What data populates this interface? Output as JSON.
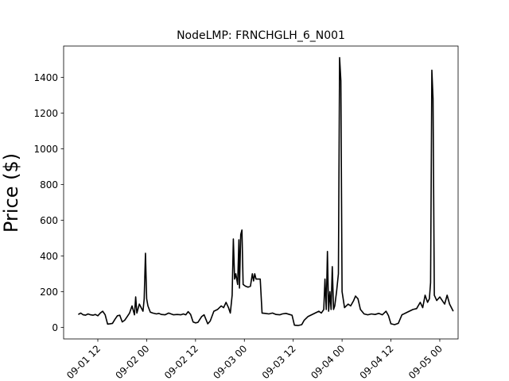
{
  "chart_data": {
    "type": "line",
    "title": "NodeLMP: FRNCHGLH_6_N001",
    "ylabel": "Price ($)",
    "xlabel": "",
    "grid": false,
    "legend": "none",
    "xlim": [
      -14.8,
      17.5
    ],
    "ylim": [
      -65,
      1575
    ],
    "y_ticks": [
      0,
      200,
      400,
      600,
      800,
      1000,
      1200,
      1400
    ],
    "x_ticks": [
      {
        "h": -12,
        "label": "09-01 12"
      },
      {
        "h": -8,
        "label": "09-02 00"
      },
      {
        "h": -4,
        "label": "09-02 12"
      },
      {
        "h": 0,
        "label": "09-03 00"
      },
      {
        "h": 4,
        "label": "09-03 12"
      },
      {
        "h": 8,
        "label": "09-04 00"
      },
      {
        "h": 12,
        "label": "09-04 12"
      },
      {
        "h": 16,
        "label": "09-05 00"
      }
    ],
    "series": [
      {
        "color": "#000000",
        "points": [
          [
            -13.6,
            72
          ],
          [
            -13.4,
            80
          ],
          [
            -13.2,
            70
          ],
          [
            -13.0,
            68
          ],
          [
            -12.8,
            75
          ],
          [
            -12.6,
            70
          ],
          [
            -12.4,
            68
          ],
          [
            -12.2,
            72
          ],
          [
            -12.0,
            65
          ],
          [
            -11.8,
            80
          ],
          [
            -11.6,
            90
          ],
          [
            -11.4,
            70
          ],
          [
            -11.2,
            18
          ],
          [
            -11.0,
            20
          ],
          [
            -10.8,
            22
          ],
          [
            -10.6,
            45
          ],
          [
            -10.4,
            65
          ],
          [
            -10.2,
            68
          ],
          [
            -10.0,
            30
          ],
          [
            -9.8,
            40
          ],
          [
            -9.6,
            60
          ],
          [
            -9.4,
            80
          ],
          [
            -9.2,
            120
          ],
          [
            -9.0,
            70
          ],
          [
            -8.9,
            170
          ],
          [
            -8.8,
            80
          ],
          [
            -8.6,
            130
          ],
          [
            -8.45,
            110
          ],
          [
            -8.3,
            90
          ],
          [
            -8.2,
            160
          ],
          [
            -8.1,
            415
          ],
          [
            -8.0,
            160
          ],
          [
            -7.9,
            120
          ],
          [
            -7.7,
            85
          ],
          [
            -7.5,
            80
          ],
          [
            -7.2,
            75
          ],
          [
            -7.0,
            78
          ],
          [
            -6.8,
            72
          ],
          [
            -6.5,
            70
          ],
          [
            -6.2,
            80
          ],
          [
            -6.0,
            75
          ],
          [
            -5.8,
            70
          ],
          [
            -5.5,
            72
          ],
          [
            -5.2,
            70
          ],
          [
            -5.0,
            75
          ],
          [
            -4.8,
            70
          ],
          [
            -4.6,
            88
          ],
          [
            -4.4,
            72
          ],
          [
            -4.2,
            30
          ],
          [
            -4.0,
            25
          ],
          [
            -3.8,
            28
          ],
          [
            -3.5,
            60
          ],
          [
            -3.3,
            70
          ],
          [
            -3.0,
            20
          ],
          [
            -2.8,
            35
          ],
          [
            -2.5,
            90
          ],
          [
            -2.2,
            100
          ],
          [
            -1.9,
            120
          ],
          [
            -1.7,
            110
          ],
          [
            -1.5,
            140
          ],
          [
            -1.3,
            110
          ],
          [
            -1.15,
            80
          ],
          [
            -1.0,
            180
          ],
          [
            -0.9,
            495
          ],
          [
            -0.8,
            270
          ],
          [
            -0.7,
            300
          ],
          [
            -0.55,
            240
          ],
          [
            -0.45,
            490
          ],
          [
            -0.4,
            220
          ],
          [
            -0.3,
            520
          ],
          [
            -0.2,
            545
          ],
          [
            -0.1,
            240
          ],
          [
            0.1,
            230
          ],
          [
            0.3,
            225
          ],
          [
            0.5,
            230
          ],
          [
            0.65,
            300
          ],
          [
            0.75,
            260
          ],
          [
            0.85,
            300
          ],
          [
            0.95,
            270
          ],
          [
            1.1,
            270
          ],
          [
            1.3,
            270
          ],
          [
            1.45,
            80
          ],
          [
            1.7,
            78
          ],
          [
            2.0,
            75
          ],
          [
            2.3,
            80
          ],
          [
            2.6,
            72
          ],
          [
            2.9,
            70
          ],
          [
            3.1,
            75
          ],
          [
            3.4,
            78
          ],
          [
            3.7,
            72
          ],
          [
            3.9,
            68
          ],
          [
            4.1,
            12
          ],
          [
            4.4,
            10
          ],
          [
            4.7,
            15
          ],
          [
            4.9,
            40
          ],
          [
            5.2,
            60
          ],
          [
            5.5,
            70
          ],
          [
            5.8,
            80
          ],
          [
            6.1,
            90
          ],
          [
            6.3,
            80
          ],
          [
            6.5,
            100
          ],
          [
            6.6,
            270
          ],
          [
            6.7,
            100
          ],
          [
            6.8,
            425
          ],
          [
            6.9,
            90
          ],
          [
            7.0,
            200
          ],
          [
            7.1,
            100
          ],
          [
            7.2,
            340
          ],
          [
            7.3,
            100
          ],
          [
            7.4,
            120
          ],
          [
            7.55,
            200
          ],
          [
            7.7,
            300
          ],
          [
            7.8,
            1510
          ],
          [
            7.9,
            1380
          ],
          [
            8.0,
            200
          ],
          [
            8.2,
            110
          ],
          [
            8.5,
            130
          ],
          [
            8.7,
            120
          ],
          [
            8.95,
            150
          ],
          [
            9.1,
            175
          ],
          [
            9.3,
            160
          ],
          [
            9.5,
            100
          ],
          [
            9.8,
            75
          ],
          [
            10.1,
            70
          ],
          [
            10.4,
            75
          ],
          [
            10.7,
            72
          ],
          [
            11.0,
            78
          ],
          [
            11.3,
            70
          ],
          [
            11.6,
            90
          ],
          [
            11.8,
            65
          ],
          [
            12.0,
            20
          ],
          [
            12.3,
            15
          ],
          [
            12.6,
            22
          ],
          [
            12.9,
            70
          ],
          [
            13.2,
            80
          ],
          [
            13.5,
            90
          ],
          [
            13.8,
            100
          ],
          [
            14.1,
            105
          ],
          [
            14.4,
            140
          ],
          [
            14.6,
            110
          ],
          [
            14.8,
            180
          ],
          [
            15.0,
            140
          ],
          [
            15.15,
            160
          ],
          [
            15.25,
            250
          ],
          [
            15.35,
            1440
          ],
          [
            15.45,
            1280
          ],
          [
            15.55,
            180
          ],
          [
            15.75,
            150
          ],
          [
            16.0,
            170
          ],
          [
            16.2,
            150
          ],
          [
            16.4,
            130
          ],
          [
            16.6,
            180
          ],
          [
            16.8,
            130
          ],
          [
            16.95,
            110
          ],
          [
            17.1,
            90
          ]
        ]
      }
    ]
  }
}
